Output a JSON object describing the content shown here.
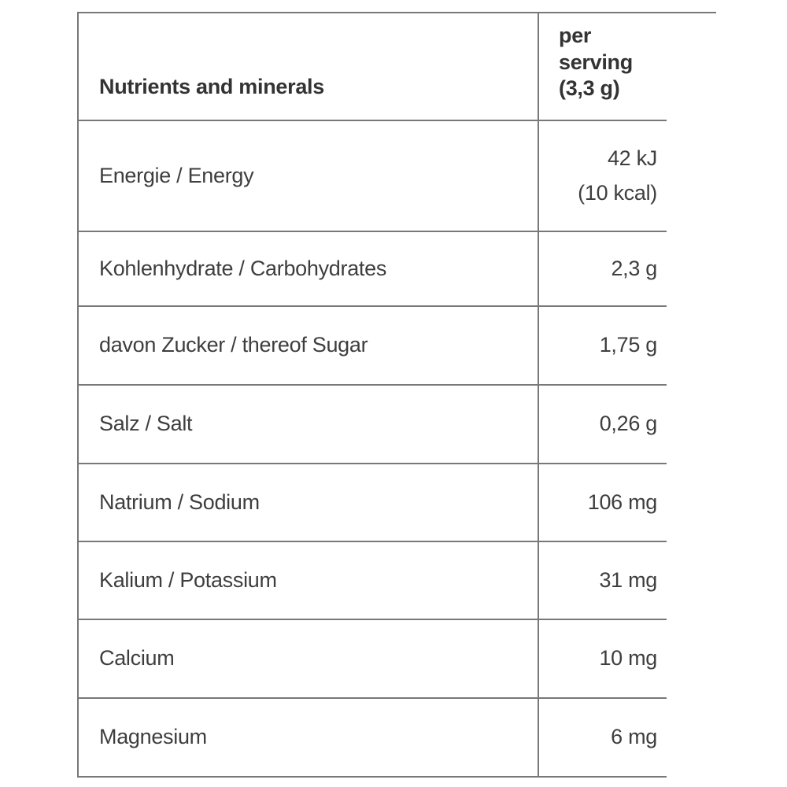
{
  "table": {
    "header": {
      "label": "Nutrients and minerals",
      "value": "per serving\n(3,3 g)"
    },
    "rows": [
      {
        "label": "Energie / Energy",
        "value": "42 kJ\n(10 kcal)"
      },
      {
        "label": "Kohlenhydrate / Carbohydrates",
        "value": "2,3 g"
      },
      {
        "label": "davon Zucker / thereof Sugar",
        "value": "1,75 g"
      },
      {
        "label": "Salz / Salt",
        "value": "0,26 g"
      },
      {
        "label": "Natrium / Sodium",
        "value": "106 mg"
      },
      {
        "label": "Kalium / Potassium",
        "value": "31 mg"
      },
      {
        "label": "Calcium",
        "value": "10 mg"
      },
      {
        "label": "Magnesium",
        "value": "6 mg"
      }
    ],
    "colors": {
      "border": "#787878",
      "text": "#3e3e3e",
      "header_text": "#333333",
      "background": "#ffffff"
    }
  }
}
